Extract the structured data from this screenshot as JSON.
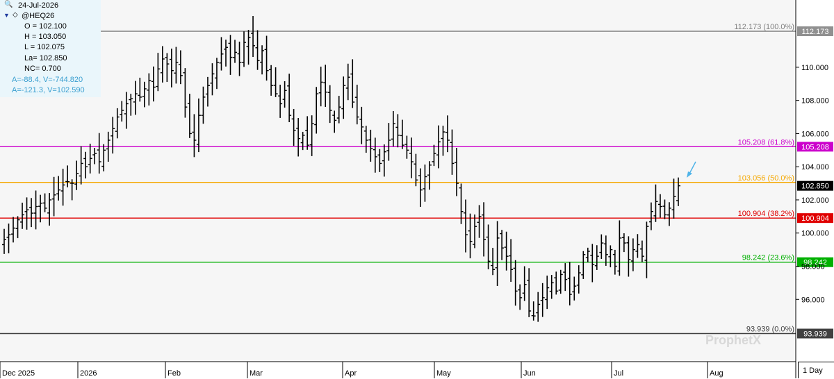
{
  "header": {
    "date": "24-Jul-2026",
    "symbol": "@HEQ26",
    "open": "O = 102.100",
    "high": "H = 103.050",
    "low": "L = 102.075",
    "last": "La= 102.850",
    "net_change": "NC= 0.700",
    "angle_1": "A=-88.4, V=-744.820",
    "angle_2": "A=-121.3, V=102.590"
  },
  "timeframe": "1 Day",
  "colors": {
    "bars": "#000000",
    "fib_100": "#808080",
    "fib_618": "#cc00cc",
    "fib_50": "#f5a800",
    "fib_382": "#e00000",
    "fib_236": "#00b000",
    "fib_0": "#404040",
    "last_price_bg": "#000000",
    "arrow": "#4fb3e8",
    "info_panel_bg": "#eaf6fb"
  },
  "icons": {
    "zoom": "magnifier-icon",
    "collapse": "triangle-down-icon",
    "symbol": "diamond-icon"
  },
  "chart_data": {
    "type": "ohlc",
    "ylim": [
      93.0,
      114.0
    ],
    "y_ticks": [
      "96.000",
      "98.000",
      "100.000",
      "102.000",
      "104.000",
      "106.000",
      "108.000",
      "110.000"
    ],
    "x_labels": [
      "Dec 2025",
      "2026",
      "Feb",
      "Mar",
      "Apr",
      "May",
      "Jun",
      "Jul",
      "Aug"
    ],
    "fib_levels": [
      {
        "label": "112.173 (100.0%)",
        "value": 112.173,
        "axis_label": "112.173",
        "color": "#808080"
      },
      {
        "label": "105.208 (61.8%)",
        "value": 105.208,
        "axis_label": "105.208",
        "color": "#cc00cc"
      },
      {
        "label": "103.056 (50.0%)",
        "value": 103.056,
        "axis_label": "",
        "color": "#f5a800"
      },
      {
        "label": "100.904 (38.2%)",
        "value": 100.904,
        "axis_label": "100.904",
        "color": "#e00000"
      },
      {
        "label": "98.242 (23.6%)",
        "value": 98.242,
        "axis_label": "98.242",
        "color": "#00b000"
      },
      {
        "label": "93.939 (0.0%)",
        "value": 93.939,
        "axis_label": "93.939",
        "color": "#404040"
      }
    ],
    "last_price": "102.850",
    "closes": [
      99.6,
      99.9,
      100.3,
      100.8,
      101.1,
      101.4,
      101.2,
      101.6,
      101.8,
      101.5,
      102.0,
      102.3,
      102.6,
      102.9,
      103.1,
      103.0,
      103.6,
      104.2,
      104.0,
      104.5,
      104.8,
      104.3,
      105.0,
      105.6,
      106.3,
      107.0,
      107.4,
      107.8,
      108.1,
      108.4,
      108.2,
      108.7,
      109.2,
      108.8,
      109.9,
      110.5,
      110.2,
      109.8,
      110.3,
      109.5,
      107.6,
      106.0,
      105.6,
      107.1,
      108.2,
      108.9,
      109.6,
      110.3,
      110.8,
      111.2,
      110.6,
      110.9,
      110.3,
      111.5,
      111.8,
      111.3,
      110.4,
      111.0,
      109.8,
      108.9,
      108.4,
      107.8,
      108.6,
      107.1,
      106.2,
      105.7,
      105.9,
      105.3,
      106.6,
      108.4,
      109.1,
      108.5,
      107.4,
      106.8,
      107.6,
      108.9,
      109.4,
      107.9,
      107.0,
      106.4,
      105.6,
      105.1,
      104.6,
      104.2,
      104.9,
      105.6,
      106.6,
      105.9,
      105.3,
      105.0,
      104.3,
      103.2,
      102.6,
      103.4,
      104.1,
      104.8,
      105.5,
      106.1,
      105.6,
      104.2,
      103.0,
      101.3,
      99.9,
      99.5,
      100.4,
      101.0,
      99.6,
      98.3,
      97.8,
      99.7,
      99.1,
      98.6,
      97.8,
      96.5,
      96.1,
      96.9,
      95.3,
      95.0,
      95.7,
      96.1,
      96.7,
      97.0,
      96.5,
      97.5,
      97.2,
      96.3,
      96.8,
      97.6,
      98.7,
      98.9,
      98.1,
      98.6,
      99.4,
      98.7,
      99.0,
      98.0,
      99.7,
      99.4,
      98.4,
      99.0,
      99.3,
      98.6,
      100.4,
      101.3,
      101.9,
      101.6,
      101.1,
      101.5,
      102.2,
      102.85
    ]
  }
}
